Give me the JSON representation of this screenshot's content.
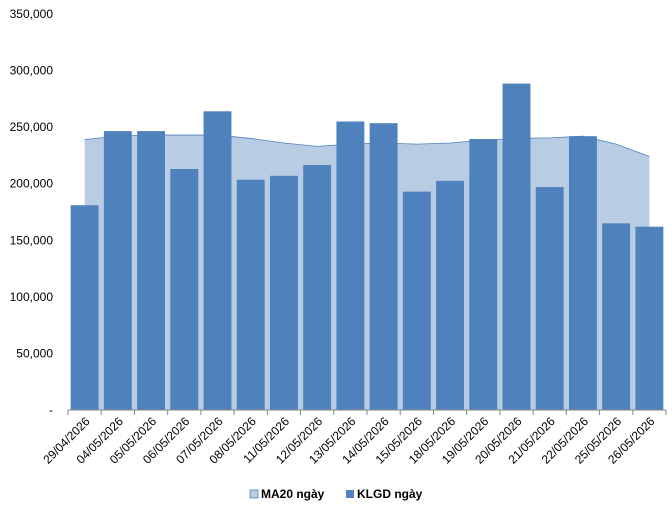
{
  "chart_data": {
    "type": "bar",
    "categories": [
      "29/04/2026",
      "04/05/2026",
      "05/05/2026",
      "06/05/2026",
      "07/05/2026",
      "08/05/2026",
      "11/05/2026",
      "12/05/2026",
      "13/05/2026",
      "14/05/2026",
      "15/05/2026",
      "18/05/2026",
      "19/05/2026",
      "20/05/2026",
      "21/05/2026",
      "22/05/2026",
      "25/05/2026",
      "26/05/2026"
    ],
    "series": [
      {
        "name": "MA20 ngày",
        "render": "area",
        "color": "#b8cce4",
        "stroke": "#4f81bd",
        "values": [
          239000,
          242000,
          243000,
          243000,
          243000,
          240000,
          236000,
          233000,
          235000,
          236000,
          235000,
          236000,
          238500,
          240000,
          240500,
          242000,
          235000,
          224000
        ]
      },
      {
        "name": "KLGD ngày",
        "render": "bar",
        "color": "#4f81bd",
        "values": [
          181000,
          246500,
          246500,
          213000,
          264000,
          203500,
          207000,
          216500,
          255000,
          253500,
          193000,
          202500,
          239500,
          288500,
          197000,
          242000,
          165000,
          162000
        ]
      }
    ],
    "ylim": [
      0,
      350000
    ],
    "yticks": [
      {
        "value": 0,
        "label": "-"
      },
      {
        "value": 50000,
        "label": "50,000"
      },
      {
        "value": 100000,
        "label": "100,000"
      },
      {
        "value": 150000,
        "label": "150,000"
      },
      {
        "value": 200000,
        "label": "200,000"
      },
      {
        "value": 250000,
        "label": "250,000"
      },
      {
        "value": 300000,
        "label": "300,000"
      },
      {
        "value": 350000,
        "label": "350,000"
      }
    ],
    "grid": false,
    "legend_position": "bottom",
    "title": "",
    "xlabel": "",
    "ylabel": ""
  }
}
